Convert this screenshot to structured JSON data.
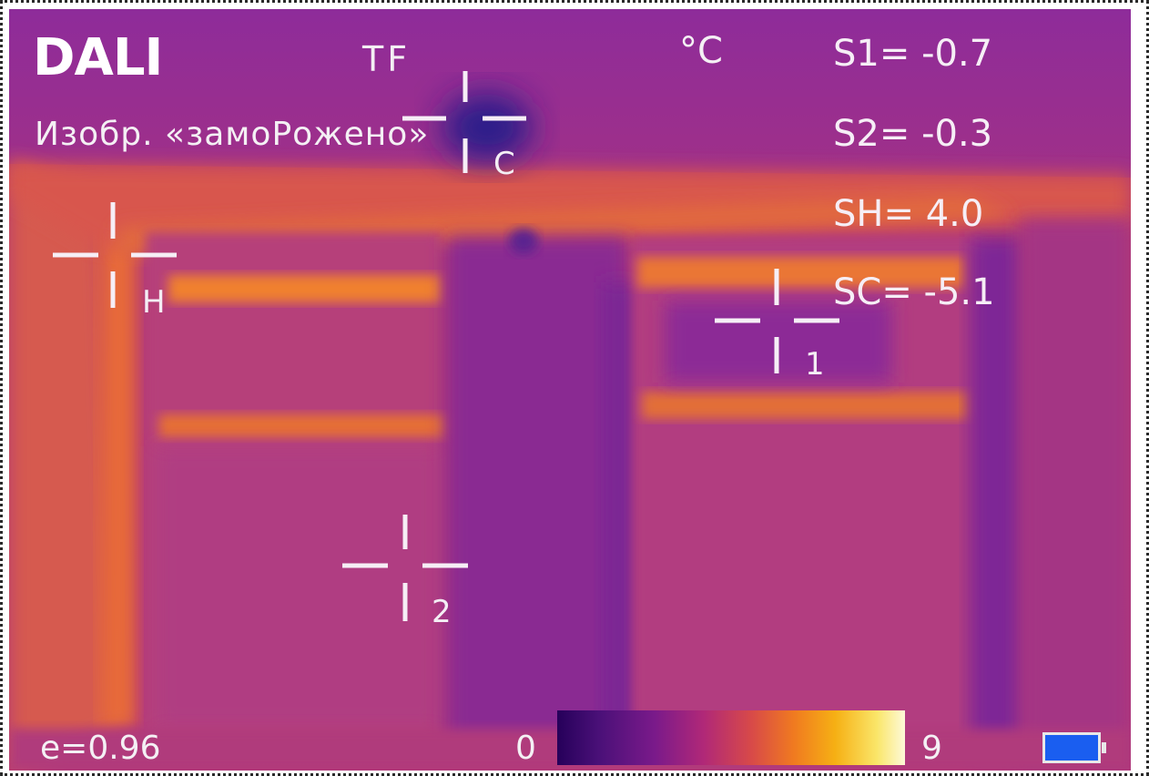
{
  "camera": {
    "brand": "DALI",
    "mode": "TF",
    "unit": "°C",
    "status": "Изобр. «замоРожено»",
    "emissivity": "e=0.96",
    "scale_min": "0",
    "scale_max": "9"
  },
  "readouts": [
    {
      "label": "S1= -0.7"
    },
    {
      "label": "S2= -0.3"
    },
    {
      "label": "SH=  4.0"
    },
    {
      "label": "SC= -5.1"
    }
  ],
  "cursors": {
    "spot1": "1",
    "spot2": "2",
    "hot": "H",
    "cold": "C"
  },
  "colors": {
    "palette": [
      "#26005a",
      "#7a1a8a",
      "#b02878",
      "#f07a20",
      "#fae66a",
      "#fdfad8"
    ],
    "overlay_text": "#f4f0f4",
    "battery": "#1a5ef0"
  },
  "icons": {
    "battery": "battery-icon",
    "crosshair": "crosshair-icon"
  }
}
